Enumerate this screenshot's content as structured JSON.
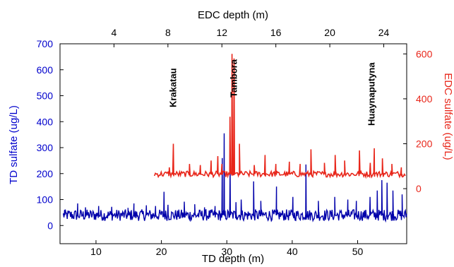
{
  "chart_data": {
    "type": "line",
    "top_axis": {
      "label": "EDC depth (m)",
      "ticks": [
        "4",
        "8",
        "12",
        "16",
        "20",
        "24"
      ],
      "range": [
        0,
        25.7
      ]
    },
    "bottom_axis": {
      "label": "TD depth (m)",
      "ticks": [
        "10",
        "20",
        "30",
        "40",
        "50"
      ],
      "range": [
        4.5,
        57.5
      ]
    },
    "left_axis": {
      "label": "TD sulfate (ug/L)",
      "ticks": [
        "0",
        "100",
        "200",
        "300",
        "400",
        "500",
        "600",
        "700"
      ],
      "range": [
        -70,
        700
      ]
    },
    "right_axis": {
      "label": "EDC sulfate (ug/L)",
      "ticks": [
        "0",
        "200",
        "400",
        "600"
      ],
      "range": [
        -245,
        645
      ]
    },
    "colors": {
      "td": "#0000aa",
      "edc": "#e8261a",
      "left_axis": "#0000cc",
      "right_axis": "#e8261a"
    },
    "annotations": [
      {
        "text": "Krakatau",
        "edc_depth": 8.4
      },
      {
        "text": "Tambora",
        "edc_depth": 12.9
      },
      {
        "text": "Huaynaputyna",
        "edc_depth": 23.1
      }
    ],
    "series": [
      {
        "axis": "bottom-left",
        "baseline": 40,
        "noise": 22,
        "x_range": [
          5,
          57.5
        ],
        "peaks": [
          [
            5.2,
            60
          ],
          [
            7.2,
            85
          ],
          [
            8.4,
            70
          ],
          [
            10.4,
            75
          ],
          [
            12.4,
            72
          ],
          [
            14.9,
            68
          ],
          [
            15.8,
            85
          ],
          [
            17.7,
            78
          ],
          [
            19.1,
            75
          ],
          [
            20.4,
            130
          ],
          [
            21.0,
            80
          ],
          [
            23.5,
            92
          ],
          [
            25.1,
            82
          ],
          [
            26.6,
            70
          ],
          [
            28.2,
            75
          ],
          [
            29.3,
            260
          ],
          [
            29.6,
            355
          ],
          [
            30.5,
            230
          ],
          [
            31.4,
            90
          ],
          [
            32.2,
            100
          ],
          [
            34.1,
            170
          ],
          [
            35.2,
            95
          ],
          [
            37.6,
            150
          ],
          [
            40.1,
            110
          ],
          [
            42.1,
            235
          ],
          [
            44.0,
            95
          ],
          [
            46.5,
            110
          ],
          [
            48.5,
            100
          ],
          [
            49.8,
            95
          ],
          [
            51.9,
            110
          ],
          [
            53.0,
            135
          ],
          [
            53.7,
            175
          ],
          [
            54.5,
            165
          ],
          [
            55.4,
            135
          ],
          [
            56.8,
            120
          ]
        ]
      },
      {
        "axis": "top-right",
        "baseline": 65,
        "noise": 13,
        "x_range": [
          7.0,
          25.6
        ],
        "peaks": [
          [
            8.1,
            95
          ],
          [
            8.4,
            200
          ],
          [
            9.6,
            110
          ],
          [
            10.4,
            105
          ],
          [
            11.2,
            125
          ],
          [
            11.7,
            145
          ],
          [
            12.0,
            110
          ],
          [
            12.6,
            320
          ],
          [
            12.9,
            580
          ],
          [
            12.75,
            600
          ],
          [
            13.3,
            200
          ],
          [
            14.4,
            105
          ],
          [
            15.2,
            150
          ],
          [
            16.0,
            110
          ],
          [
            17.0,
            120
          ],
          [
            17.8,
            110
          ],
          [
            18.6,
            175
          ],
          [
            19.6,
            115
          ],
          [
            20.4,
            150
          ],
          [
            21.1,
            125
          ],
          [
            22.2,
            170
          ],
          [
            23.0,
            115
          ],
          [
            23.3,
            180
          ],
          [
            23.9,
            135
          ],
          [
            24.6,
            110
          ],
          [
            25.3,
            95
          ]
        ]
      }
    ]
  }
}
